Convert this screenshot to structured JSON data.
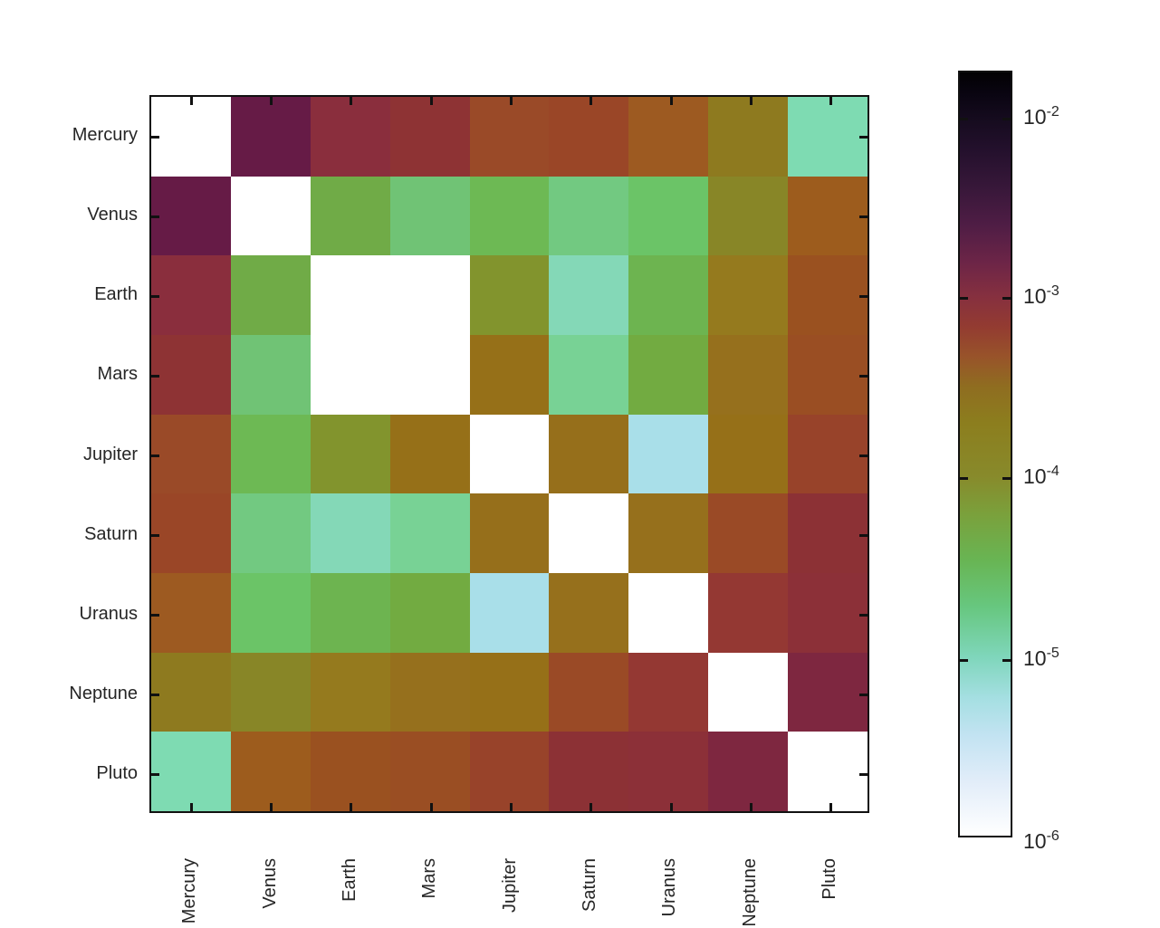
{
  "figure": {
    "background_color": "#ffffff",
    "text_color": "#262626",
    "axis_color": "#111111",
    "title": ""
  },
  "chart_data": {
    "type": "heatmap",
    "title": "",
    "xlabel": "",
    "ylabel": "",
    "x_categories": [
      "Mercury",
      "Venus",
      "Earth",
      "Mars",
      "Jupiter",
      "Saturn",
      "Uranus",
      "Neptune",
      "Pluto"
    ],
    "y_categories": [
      "Mercury",
      "Venus",
      "Earth",
      "Mars",
      "Jupiter",
      "Saturn",
      "Uranus",
      "Neptune",
      "Pluto"
    ],
    "x_tick_label_rotation_deg": 90,
    "grid": false,
    "scale": "log10",
    "colormap": "reversed cubehelix: white (1e-6) -> pale blue -> teal -> green -> olive -> brown -> maroon -> dark purple -> black (1e-2)",
    "value_note": "values estimated from colorbar; white cells (diagonal and Earth-Mars pair) are at or below the 1e-6 colour-scale minimum",
    "cell_colors": [
      [
        "#ffffff",
        "#661b46",
        "#8a2e3d",
        "#8e3334",
        "#9a4a28",
        "#9a4627",
        "#9d5a21",
        "#8e7a1f",
        "#7edbb2"
      ],
      [
        "#661b46",
        "#ffffff",
        "#70ab47",
        "#70c375",
        "#6db954",
        "#72c981",
        "#6bc467",
        "#888627",
        "#9d5c1d"
      ],
      [
        "#8a2e3d",
        "#70ab47",
        "#ffffff",
        "#ffffff",
        "#82942d",
        "#84d8b7",
        "#6db450",
        "#957a1e",
        "#9a5120"
      ],
      [
        "#8e3334",
        "#70c375",
        "#ffffff",
        "#ffffff",
        "#967018",
        "#78d295",
        "#72ab41",
        "#96701d",
        "#9a4e23"
      ],
      [
        "#9a4a28",
        "#6db954",
        "#82942d",
        "#967018",
        "#ffffff",
        "#966f1b",
        "#a9dfe9",
        "#967018",
        "#98432a"
      ],
      [
        "#9a4627",
        "#72c981",
        "#84d8b7",
        "#78d295",
        "#966f1b",
        "#ffffff",
        "#96701c",
        "#9a4a26",
        "#8c3135"
      ],
      [
        "#9d5a21",
        "#6bc467",
        "#6db450",
        "#72ab41",
        "#a9dfe9",
        "#96701c",
        "#ffffff",
        "#943833",
        "#8c3038"
      ],
      [
        "#8e7a1f",
        "#888627",
        "#957a1e",
        "#96701d",
        "#967018",
        "#9a4a26",
        "#943833",
        "#ffffff",
        "#7e2740"
      ],
      [
        "#7edbb2",
        "#9d5c1d",
        "#9a5120",
        "#9a4e23",
        "#98432a",
        "#8c3135",
        "#8c3038",
        "#7e2740",
        "#ffffff"
      ]
    ],
    "values_log10_estimated": [
      [
        -6.0,
        -2.6,
        -3.0,
        -3.1,
        -3.4,
        -3.4,
        -3.6,
        -3.9,
        -4.9
      ],
      [
        -2.6,
        -6.0,
        -4.4,
        -4.6,
        -4.5,
        -4.65,
        -4.55,
        -4.0,
        -3.55
      ],
      [
        -3.0,
        -4.4,
        -6.0,
        -6.0,
        -4.1,
        -4.9,
        -4.45,
        -3.85,
        -3.5
      ],
      [
        -3.1,
        -4.6,
        -6.0,
        -6.0,
        -3.8,
        -4.75,
        -4.35,
        -3.8,
        -3.45
      ],
      [
        -3.4,
        -4.5,
        -4.1,
        -3.8,
        -6.0,
        -3.8,
        -5.35,
        -3.8,
        -3.3
      ],
      [
        -3.4,
        -4.65,
        -4.9,
        -4.75,
        -3.8,
        -6.0,
        -3.8,
        -3.4,
        -3.0
      ],
      [
        -3.6,
        -4.55,
        -4.45,
        -4.35,
        -5.35,
        -3.8,
        -6.0,
        -3.15,
        -3.0
      ],
      [
        -3.9,
        -4.0,
        -3.85,
        -3.8,
        -3.8,
        -3.4,
        -3.15,
        -6.0,
        -2.8
      ],
      [
        -4.9,
        -3.55,
        -3.5,
        -3.45,
        -3.3,
        -3.0,
        -3.0,
        -2.8,
        -6.0
      ]
    ],
    "colorbar": {
      "orientation": "vertical",
      "position": "right",
      "tick_label_base": "10",
      "tick_exponents": [
        "-2",
        "-3",
        "-4",
        "-5",
        "-6"
      ],
      "range_min": "1e-6",
      "range_max": "1e-2",
      "gradient_stops": [
        [
          0.0,
          "#020103"
        ],
        [
          0.03,
          "#0a0512"
        ],
        [
          0.06,
          "#150b1e"
        ],
        [
          0.1,
          "#23102c"
        ],
        [
          0.15,
          "#371739"
        ],
        [
          0.2,
          "#4f1d45"
        ],
        [
          0.25,
          "#6d2547"
        ],
        [
          0.294,
          "#86303f"
        ],
        [
          0.333,
          "#933b31"
        ],
        [
          0.372,
          "#98532a"
        ],
        [
          0.412,
          "#8f6d20"
        ],
        [
          0.46,
          "#8c7e1e"
        ],
        [
          0.529,
          "#888a2b"
        ],
        [
          0.58,
          "#7aa13c"
        ],
        [
          0.64,
          "#68b554"
        ],
        [
          0.7,
          "#67c77f"
        ],
        [
          0.766,
          "#7fd6bb"
        ],
        [
          0.82,
          "#a5dfe2"
        ],
        [
          0.87,
          "#c3e3f2"
        ],
        [
          0.93,
          "#e2edf9"
        ],
        [
          1.0,
          "#ffffff"
        ]
      ]
    }
  }
}
